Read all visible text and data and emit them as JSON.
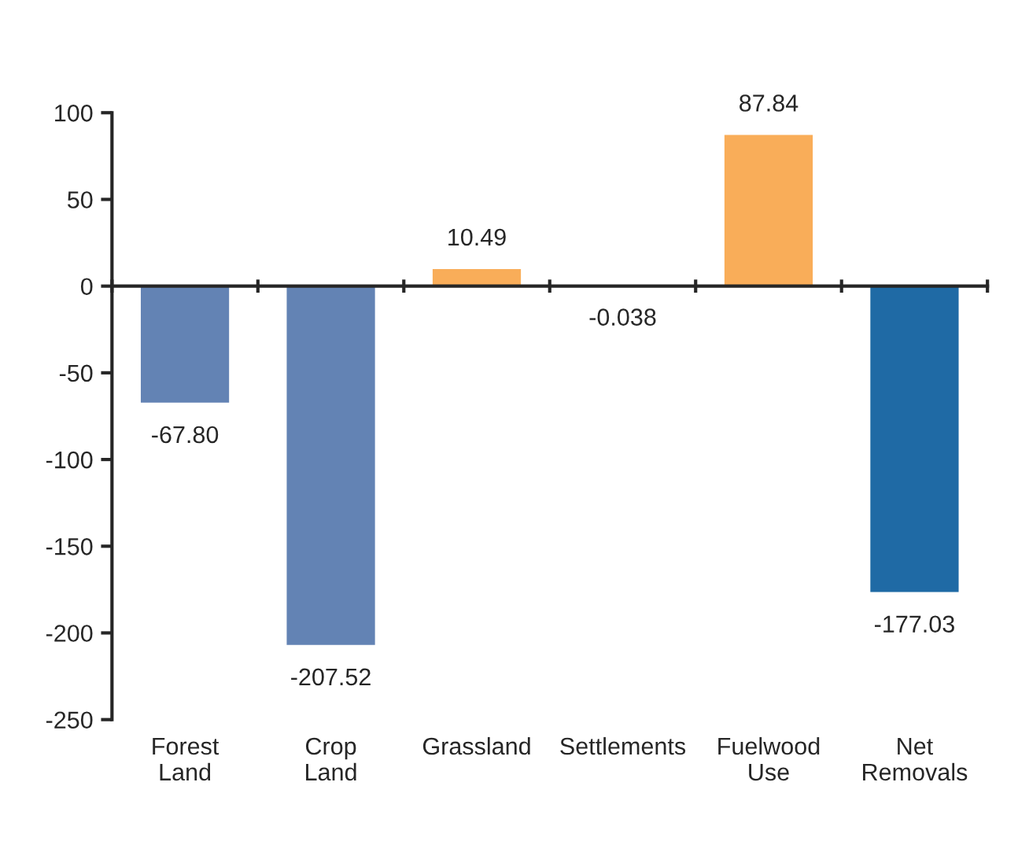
{
  "chart_data": {
    "type": "bar",
    "categories": [
      "Forest\nLand",
      "Crop\nLand",
      "Grassland",
      "Settlements",
      "Fuelwood\nUse",
      "Net\nRemovals"
    ],
    "values": [
      -67.8,
      -207.52,
      10.49,
      -0.038,
      87.84,
      -177.03
    ],
    "value_labels": [
      "-67.80",
      "-207.52",
      "10.49",
      "-0.038",
      "87.84",
      "-177.03"
    ],
    "colors": [
      "#6383b4",
      "#6383b4",
      "#f9ad59",
      "#6383b4",
      "#f9ad59",
      "#1f6aa5"
    ],
    "ylim": [
      -250,
      100
    ],
    "yticks": [
      100,
      50,
      0,
      -50,
      -100,
      -150,
      -200,
      -250
    ]
  }
}
